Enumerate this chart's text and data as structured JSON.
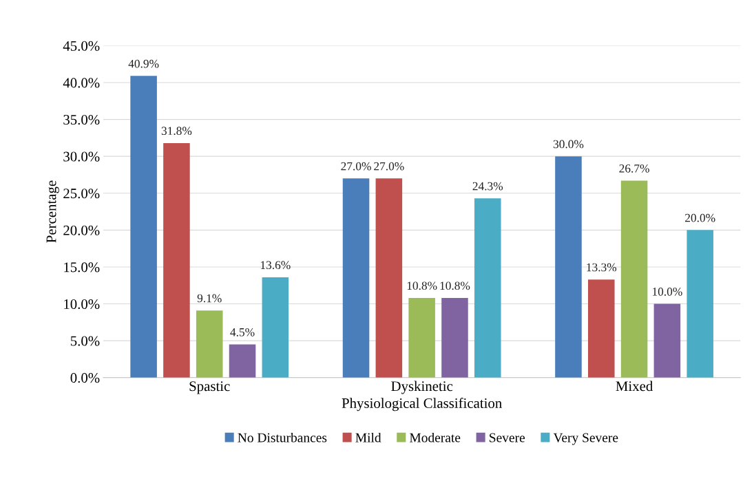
{
  "chart_data": {
    "type": "bar",
    "xlabel": "Physiological Classification",
    "ylabel": "Percentage",
    "categories": [
      "Spastic",
      "Dyskinetic",
      "Mixed"
    ],
    "series": [
      {
        "name": "No Disturbances",
        "color": "#4a7ebb",
        "values": [
          40.9,
          27.0,
          30.0
        ],
        "value_labels": [
          "40.9%",
          "27.0%",
          "30.0%"
        ]
      },
      {
        "name": "Mild",
        "color": "#c0504d",
        "values": [
          31.8,
          27.0,
          13.3
        ],
        "value_labels": [
          "31.8%",
          "27.0%",
          "13.3%"
        ]
      },
      {
        "name": "Moderate",
        "color": "#9bbb59",
        "values": [
          9.1,
          10.8,
          26.7
        ],
        "value_labels": [
          "9.1%",
          "10.8%",
          "26.7%"
        ]
      },
      {
        "name": "Severe",
        "color": "#8064a2",
        "values": [
          4.5,
          10.8,
          10.0
        ],
        "value_labels": [
          "4.5%",
          "10.8%",
          "10.0%"
        ]
      },
      {
        "name": "Very Severe",
        "color": "#4bacc6",
        "values": [
          13.6,
          24.3,
          20.0
        ],
        "value_labels": [
          "13.6%",
          "24.3%",
          "20.0%"
        ]
      }
    ],
    "ylim": [
      0,
      45
    ],
    "yticks": [
      {
        "value": 0,
        "label": "0.0%"
      },
      {
        "value": 5,
        "label": "5.0%"
      },
      {
        "value": 10,
        "label": "10.0%"
      },
      {
        "value": 15,
        "label": "15.0%"
      },
      {
        "value": 20,
        "label": "20.0%"
      },
      {
        "value": 25,
        "label": "25.0%"
      },
      {
        "value": 30,
        "label": "30.0%"
      },
      {
        "value": 35,
        "label": "35.0%"
      },
      {
        "value": 40,
        "label": "40.0%"
      },
      {
        "value": 45,
        "label": "45.0%"
      }
    ],
    "grid": "y",
    "legend": "bottom"
  }
}
